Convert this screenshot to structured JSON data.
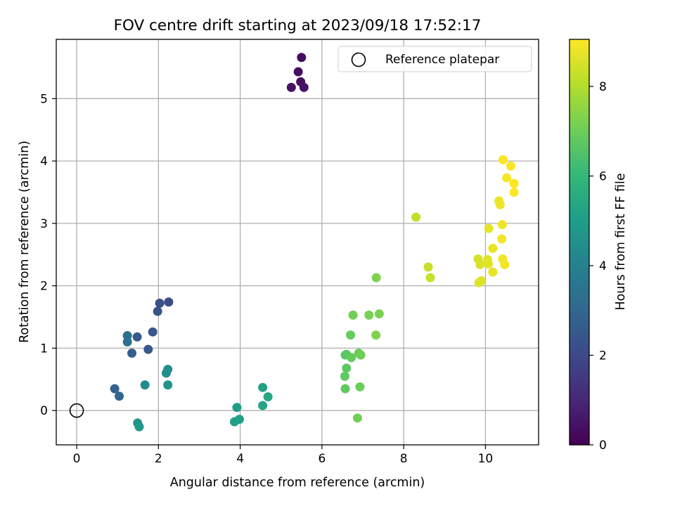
{
  "chart_data": {
    "type": "scatter",
    "title": "FOV centre drift starting at 2023/09/18 17:52:17",
    "xlabel": "Angular distance from reference (arcmin)",
    "ylabel": "Rotation from reference (arcmin)",
    "xlim": [
      -0.5,
      11.3
    ],
    "ylim": [
      -0.55,
      5.95
    ],
    "xticks": [
      0,
      2,
      4,
      6,
      8,
      10
    ],
    "yticks": [
      0,
      1,
      2,
      3,
      4,
      5
    ],
    "grid": true,
    "legend": {
      "placement": "top-right",
      "entries": [
        "Reference platepar"
      ]
    },
    "reference_point": {
      "x": 0,
      "y": 0
    },
    "colorbar": {
      "label": "Hours from first FF file",
      "range": [
        0,
        9.05
      ],
      "ticks": [
        0,
        2,
        4,
        6,
        8
      ],
      "colormap": "viridis"
    },
    "points": [
      {
        "x": 5.5,
        "y": 5.66,
        "c": 0.3
      },
      {
        "x": 5.42,
        "y": 5.43,
        "c": 0.35
      },
      {
        "x": 5.48,
        "y": 5.27,
        "c": 0.4
      },
      {
        "x": 5.25,
        "y": 5.18,
        "c": 0.45
      },
      {
        "x": 5.56,
        "y": 5.18,
        "c": 0.5
      },
      {
        "x": 2.25,
        "y": 1.74,
        "c": 2.1
      },
      {
        "x": 2.03,
        "y": 1.72,
        "c": 2.2
      },
      {
        "x": 1.98,
        "y": 1.59,
        "c": 2.3
      },
      {
        "x": 1.86,
        "y": 1.26,
        "c": 2.4
      },
      {
        "x": 1.75,
        "y": 0.98,
        "c": 2.5
      },
      {
        "x": 1.48,
        "y": 1.18,
        "c": 2.6
      },
      {
        "x": 1.35,
        "y": 0.92,
        "c": 2.7
      },
      {
        "x": 0.93,
        "y": 0.35,
        "c": 2.8
      },
      {
        "x": 1.04,
        "y": 0.23,
        "c": 2.9
      },
      {
        "x": 1.24,
        "y": 1.2,
        "c": 3.3
      },
      {
        "x": 1.24,
        "y": 1.1,
        "c": 3.4
      },
      {
        "x": 1.67,
        "y": 0.41,
        "c": 4.3
      },
      {
        "x": 2.23,
        "y": 0.66,
        "c": 4.4
      },
      {
        "x": 2.19,
        "y": 0.6,
        "c": 4.5
      },
      {
        "x": 2.23,
        "y": 0.41,
        "c": 4.6
      },
      {
        "x": 1.49,
        "y": -0.2,
        "c": 4.7
      },
      {
        "x": 1.53,
        "y": -0.26,
        "c": 4.8
      },
      {
        "x": 3.92,
        "y": 0.05,
        "c": 5.0
      },
      {
        "x": 3.86,
        "y": -0.18,
        "c": 5.1
      },
      {
        "x": 3.98,
        "y": -0.14,
        "c": 5.15
      },
      {
        "x": 4.55,
        "y": 0.37,
        "c": 5.2
      },
      {
        "x": 4.55,
        "y": 0.08,
        "c": 5.3
      },
      {
        "x": 4.68,
        "y": 0.22,
        "c": 5.4
      },
      {
        "x": 6.57,
        "y": 0.89,
        "c": 6.6
      },
      {
        "x": 6.6,
        "y": 0.9,
        "c": 6.7
      },
      {
        "x": 6.6,
        "y": 0.68,
        "c": 6.75
      },
      {
        "x": 6.56,
        "y": 0.55,
        "c": 6.8
      },
      {
        "x": 6.57,
        "y": 0.35,
        "c": 6.8
      },
      {
        "x": 6.7,
        "y": 1.21,
        "c": 6.9
      },
      {
        "x": 6.72,
        "y": 0.85,
        "c": 6.9
      },
      {
        "x": 6.9,
        "y": 0.92,
        "c": 7.0
      },
      {
        "x": 6.95,
        "y": 0.89,
        "c": 7.0
      },
      {
        "x": 6.93,
        "y": 0.38,
        "c": 7.0
      },
      {
        "x": 6.87,
        "y": -0.12,
        "c": 7.1
      },
      {
        "x": 6.76,
        "y": 1.53,
        "c": 7.1
      },
      {
        "x": 7.15,
        "y": 1.53,
        "c": 7.15
      },
      {
        "x": 7.4,
        "y": 1.55,
        "c": 7.2
      },
      {
        "x": 7.33,
        "y": 2.13,
        "c": 7.3
      },
      {
        "x": 7.32,
        "y": 1.21,
        "c": 7.3
      },
      {
        "x": 8.3,
        "y": 3.1,
        "c": 8.2
      },
      {
        "x": 8.6,
        "y": 2.3,
        "c": 8.3
      },
      {
        "x": 8.65,
        "y": 2.13,
        "c": 8.3
      },
      {
        "x": 9.82,
        "y": 2.43,
        "c": 8.5
      },
      {
        "x": 9.87,
        "y": 2.34,
        "c": 8.55
      },
      {
        "x": 9.84,
        "y": 2.05,
        "c": 8.6
      },
      {
        "x": 9.9,
        "y": 2.08,
        "c": 8.6
      },
      {
        "x": 10.05,
        "y": 2.42,
        "c": 8.65
      },
      {
        "x": 10.07,
        "y": 2.35,
        "c": 8.7
      },
      {
        "x": 10.08,
        "y": 2.92,
        "c": 8.7
      },
      {
        "x": 10.18,
        "y": 2.6,
        "c": 8.75
      },
      {
        "x": 10.18,
        "y": 2.22,
        "c": 8.75
      },
      {
        "x": 10.33,
        "y": 3.36,
        "c": 8.8
      },
      {
        "x": 10.36,
        "y": 3.3,
        "c": 8.85
      },
      {
        "x": 10.41,
        "y": 2.98,
        "c": 8.85
      },
      {
        "x": 10.4,
        "y": 2.75,
        "c": 8.9
      },
      {
        "x": 10.42,
        "y": 2.43,
        "c": 8.9
      },
      {
        "x": 10.47,
        "y": 2.34,
        "c": 8.9
      },
      {
        "x": 10.52,
        "y": 3.73,
        "c": 8.95
      },
      {
        "x": 10.43,
        "y": 4.02,
        "c": 9.0
      },
      {
        "x": 10.62,
        "y": 3.92,
        "c": 9.0
      },
      {
        "x": 10.7,
        "y": 3.64,
        "c": 9.05
      },
      {
        "x": 10.7,
        "y": 3.5,
        "c": 9.05
      }
    ]
  }
}
